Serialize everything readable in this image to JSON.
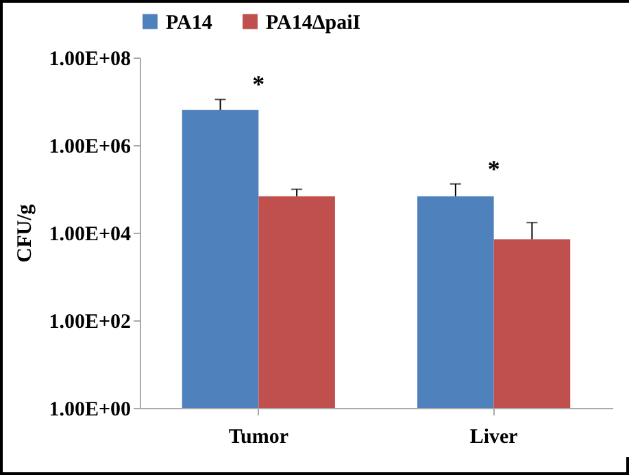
{
  "chart_data": {
    "type": "bar",
    "ylabel": "CFU/g",
    "categories": [
      "Tumor",
      "Liver"
    ],
    "series": [
      {
        "name": "PA14",
        "color": "#4f81bd",
        "values": [
          6300000,
          68000
        ],
        "errors": [
          [
            6300000,
            11000000
          ],
          [
            68000,
            130000
          ]
        ]
      },
      {
        "name": "PA14ΔpaiI",
        "color": "#c0504d",
        "values": [
          68000,
          7100
        ],
        "errors": [
          [
            68000,
            98000
          ],
          [
            7100,
            17000
          ]
        ]
      }
    ],
    "log": true,
    "ylim": [
      1,
      100000000
    ],
    "yticks": [
      {
        "value": 1,
        "label": "1.00E+00"
      },
      {
        "value": 100,
        "label": "1.00E+02"
      },
      {
        "value": 10000,
        "label": "1.00E+04"
      },
      {
        "value": 1000000,
        "label": "1.00E+06"
      },
      {
        "value": 100000000,
        "label": "1.00E+08"
      }
    ],
    "legend": "top",
    "annotations": [
      "*",
      "*"
    ]
  }
}
